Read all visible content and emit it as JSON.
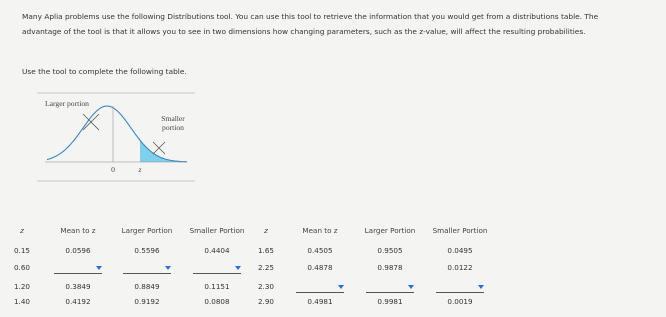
{
  "intro": "Many Aplia problems use the following Distributions tool. You can use this tool to retrieve the information that you would get from a distributions table. The advantage of the tool is that it allows you to see in two dimensions how changing parameters, such as the z-value, will affect the resulting probabilities.",
  "instruction": "Use the tool to complete the following table.",
  "tool": {
    "larger_label": "Larger portion",
    "smaller_label": "Smaller portion",
    "zero_label": "0",
    "z_label": "z"
  },
  "table": {
    "headers": [
      "z",
      "Mean to z",
      "Larger Portion",
      "Smaller Portion",
      "z",
      "Mean to z",
      "Larger Portion",
      "Smaller Portion"
    ],
    "rows": [
      [
        "0.15",
        "0.0596",
        "0.5596",
        "0.4404",
        "1.65",
        "0.4505",
        "0.9505",
        "0.0495"
      ],
      [
        "0.60",
        null,
        null,
        null,
        "2.25",
        "0.4878",
        "0.9878",
        "0.0122"
      ],
      [
        "1.20",
        "0.3849",
        "0.8849",
        "0.1151",
        "2.30",
        null,
        null,
        null
      ],
      [
        "1.40",
        "0.4192",
        "0.9192",
        "0.0808",
        "2.90",
        "0.4981",
        "0.9981",
        "0.0019"
      ]
    ]
  }
}
